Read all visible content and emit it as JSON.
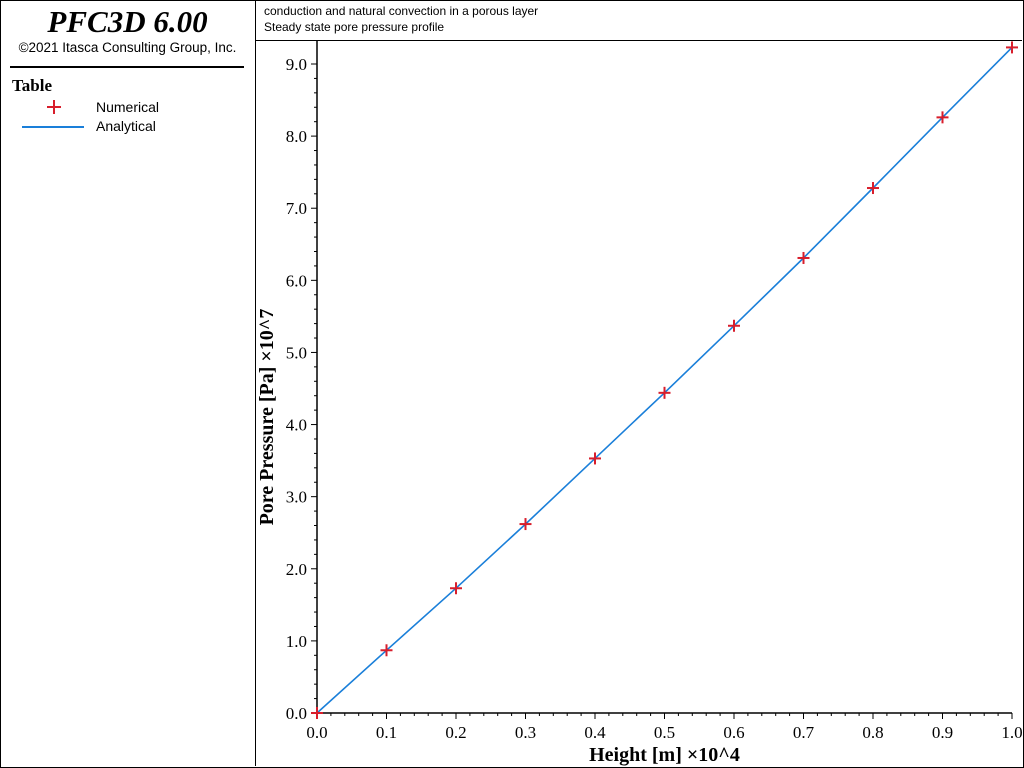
{
  "app": {
    "title": "PFC3D 6.00",
    "copyright": "©2021 Itasca Consulting Group, Inc."
  },
  "legend": {
    "title": "Table",
    "items": [
      {
        "label": "Numerical",
        "marker": "plus",
        "color": "#d81e2c"
      },
      {
        "label": "Analytical",
        "marker": "line",
        "color": "#1a7fd9"
      }
    ]
  },
  "caption": {
    "line1": "conduction and natural convection in a porous layer",
    "line2": "Steady state pore pressure profile"
  },
  "chart_data": {
    "type": "line",
    "xlabel": "Height [m] ×10^4",
    "ylabel": "Pore Pressure [Pa] ×10^7",
    "xlim": [
      0.0,
      1.0
    ],
    "ylim": [
      0.0,
      9.25
    ],
    "xticks": [
      "0.0",
      "0.1",
      "0.2",
      "0.3",
      "0.4",
      "0.5",
      "0.6",
      "0.7",
      "0.8",
      "0.9",
      "1.0"
    ],
    "yticks": [
      "0.0",
      "1.0",
      "2.0",
      "3.0",
      "4.0",
      "5.0",
      "6.0",
      "7.0",
      "8.0",
      "9.0"
    ],
    "grid": false,
    "legend_position": "left-panel",
    "series": [
      {
        "name": "Numerical",
        "style": "markers",
        "color": "#d81e2c",
        "x": [
          0.0,
          0.1,
          0.2,
          0.3,
          0.4,
          0.5,
          0.6,
          0.7,
          0.8,
          0.9,
          1.0
        ],
        "y": [
          0.0,
          0.87,
          1.73,
          2.62,
          3.53,
          4.44,
          5.37,
          6.31,
          7.28,
          8.26,
          9.23
        ]
      },
      {
        "name": "Analytical",
        "style": "line",
        "color": "#1a7fd9",
        "x": [
          0.0,
          0.1,
          0.2,
          0.3,
          0.4,
          0.5,
          0.6,
          0.7,
          0.8,
          0.9,
          1.0
        ],
        "y": [
          0.0,
          0.87,
          1.73,
          2.62,
          3.53,
          4.44,
          5.37,
          6.31,
          7.28,
          8.26,
          9.23
        ]
      }
    ]
  }
}
